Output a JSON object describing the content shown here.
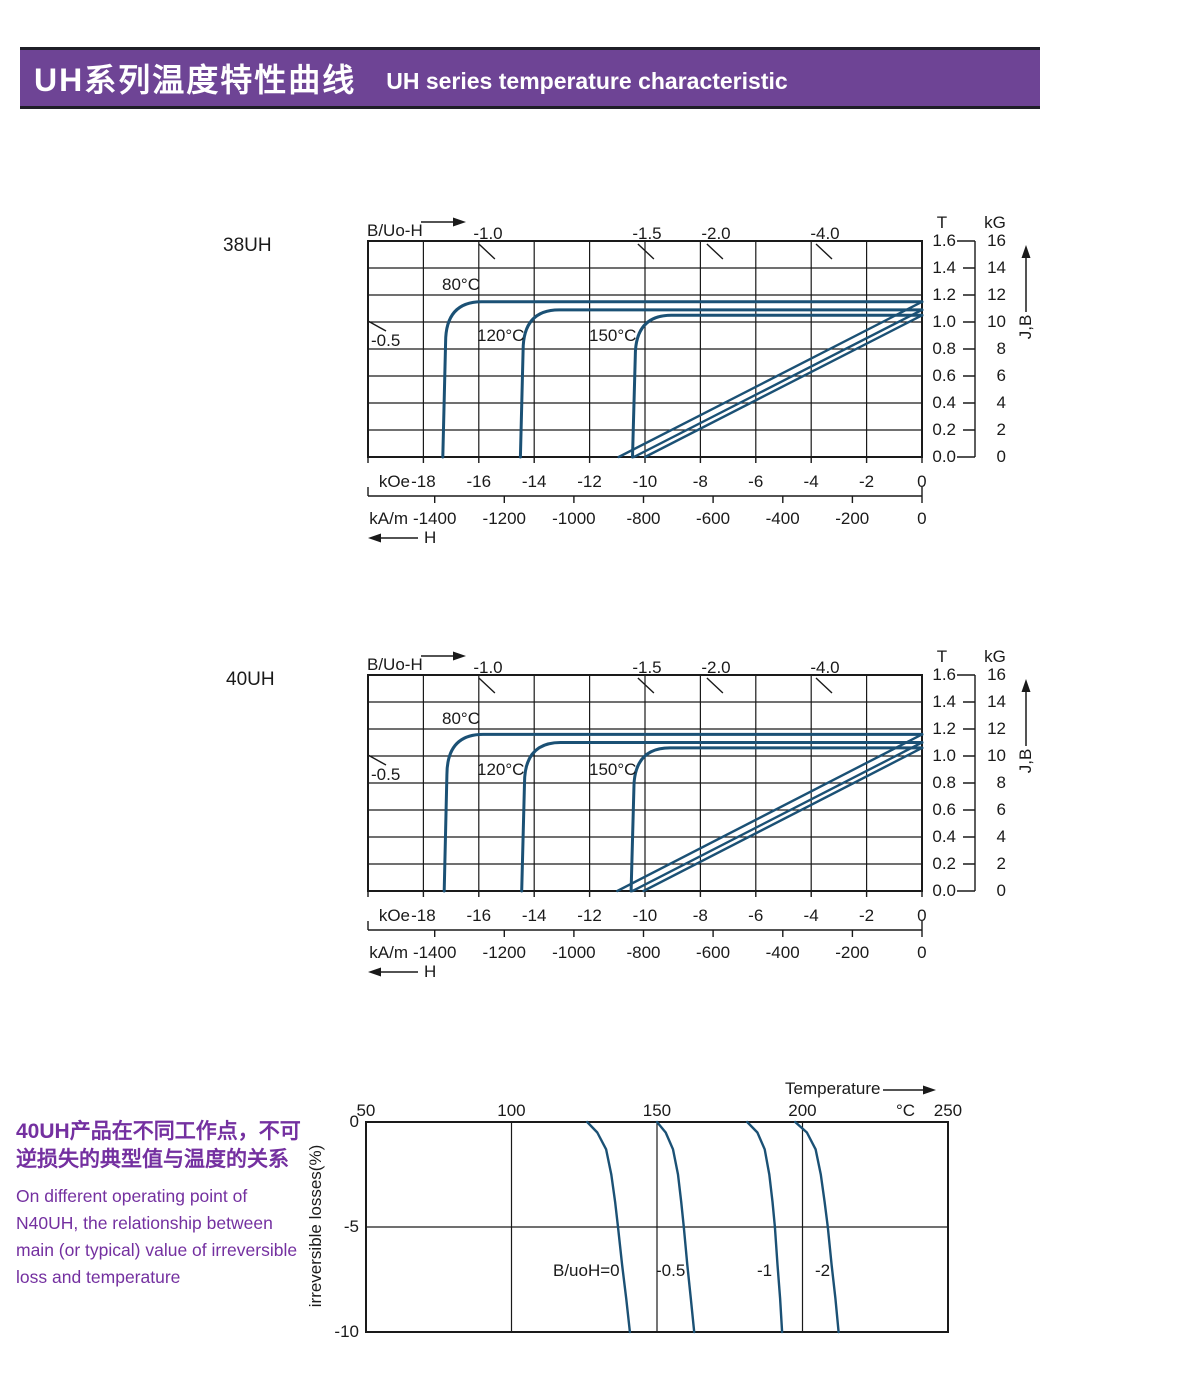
{
  "colors": {
    "accent_purple": "#6e4495",
    "text_purple": "#7430a0",
    "curve_blue": "#1b5175",
    "line_black": "#1a1a1a"
  },
  "header": {
    "title_cn": "UH系列温度特性曲线",
    "title_en": "UH series temperature characteristic"
  },
  "side_note": {
    "cn_lines": [
      "40UH产品在不同工作点，不可",
      "逆损失的典型值与温度的关系"
    ],
    "en_lines": [
      "On different operating point of",
      "N40UH,  the relationship between",
      "main (or typical) value of irreversible",
      "loss and temperature"
    ]
  },
  "chart_data": [
    {
      "name": "38UH demagnetization curves",
      "type": "line",
      "title": "38UH",
      "top_axis_label": "B/Uo-H",
      "load_lines": [
        "-1.0",
        "-1.5",
        "-2.0",
        "-4.0"
      ],
      "load_lines_pos_koe": [
        -15.67,
        -9.93,
        -7.44,
        -3.5
      ],
      "load_line_left": "-0.5",
      "xlim_koe": [
        -20,
        0
      ],
      "ylim_tesla": [
        0,
        1.6
      ],
      "x_axis_koe": {
        "unit": "kOe",
        "ticks": [
          "-18",
          "-16",
          "-14",
          "-12",
          "-10",
          "-8",
          "-6",
          "-4",
          "-2",
          "0"
        ]
      },
      "x_axis_kam": {
        "unit": "kA/m",
        "ticks": [
          "-1400",
          "-1200",
          "-1000",
          "-800",
          "-600",
          "-400",
          "-200",
          "0"
        ]
      },
      "x_arrow_label": "H",
      "right_axis": {
        "tesla_header": "T",
        "gauss_header": "kG",
        "axis_label": "J,B",
        "tesla_ticks": [
          "1.6",
          "1.4",
          "1.2",
          "1.0",
          "0.8",
          "0.6",
          "0.4",
          "0.2",
          "0.0"
        ],
        "gauss_ticks": [
          "16",
          "14",
          "12",
          "10",
          "8",
          "6",
          "4",
          "2",
          "0"
        ]
      },
      "series": [
        {
          "label": "80°C",
          "curve": "J",
          "flat_tesla": 1.15,
          "knee_koe": -17.2
        },
        {
          "label": "120°C",
          "curve": "J",
          "flat_tesla": 1.09,
          "knee_koe": -14.4
        },
        {
          "label": "150°C",
          "curve": "J",
          "flat_tesla": 1.05,
          "knee_koe": -10.35
        },
        {
          "curve": "B",
          "br_tesla": 1.15,
          "h0_koe": -10.95
        },
        {
          "curve": "B",
          "br_tesla": 1.09,
          "h0_koe": -10.4
        },
        {
          "curve": "B",
          "br_tesla": 1.05,
          "h0_koe": -10.0
        }
      ]
    },
    {
      "name": "40UH demagnetization curves",
      "type": "line",
      "title": "40UH",
      "top_axis_label": "B/Uo-H",
      "load_lines": [
        "-1.0",
        "-1.5",
        "-2.0",
        "-4.0"
      ],
      "load_lines_pos_koe": [
        -15.67,
        -9.93,
        -7.44,
        -3.5
      ],
      "load_line_left": "-0.5",
      "xlim_koe": [
        -20,
        0
      ],
      "ylim_tesla": [
        0,
        1.6
      ],
      "x_axis_koe": {
        "unit": "kOe",
        "ticks": [
          "-18",
          "-16",
          "-14",
          "-12",
          "-10",
          "-8",
          "-6",
          "-4",
          "-2",
          "0"
        ]
      },
      "x_axis_kam": {
        "unit": "kA/m",
        "ticks": [
          "-1400",
          "-1200",
          "-1000",
          "-800",
          "-600",
          "-400",
          "-200",
          "0"
        ]
      },
      "x_arrow_label": "H",
      "right_axis": {
        "tesla_header": "T",
        "gauss_header": "kG",
        "axis_label": "J,B",
        "tesla_ticks": [
          "1.6",
          "1.4",
          "1.2",
          "1.0",
          "0.8",
          "0.6",
          "0.4",
          "0.2",
          "0.0"
        ],
        "gauss_ticks": [
          "16",
          "14",
          "12",
          "10",
          "8",
          "6",
          "4",
          "2",
          "0"
        ]
      },
      "series": [
        {
          "label": "80°C",
          "curve": "J",
          "flat_tesla": 1.16,
          "knee_koe": -17.15
        },
        {
          "label": "120°C",
          "curve": "J",
          "flat_tesla": 1.1,
          "knee_koe": -14.35
        },
        {
          "label": "150°C",
          "curve": "J",
          "flat_tesla": 1.06,
          "knee_koe": -10.4
        },
        {
          "curve": "B",
          "br_tesla": 1.16,
          "h0_koe": -11.0
        },
        {
          "curve": "B",
          "br_tesla": 1.1,
          "h0_koe": -10.45
        },
        {
          "curve": "B",
          "br_tesla": 1.06,
          "h0_koe": -10.05
        }
      ]
    },
    {
      "name": "irreversible loss vs temperature (40UH)",
      "type": "line",
      "x_axis": {
        "label": "Temperature",
        "unit": "°C",
        "ticks": [
          "50",
          "100",
          "150",
          "200",
          "250"
        ]
      },
      "y_axis": {
        "label": "irreversible  losses(%)",
        "ticks": [
          "0",
          "-5",
          "-10"
        ]
      },
      "xlim_c": [
        50,
        250
      ],
      "ylim_pct": [
        -10,
        0
      ],
      "series": [
        {
          "label": "B/uoH=0",
          "points": [
            [
              126,
              0
            ],
            [
              129.5,
              -0.5
            ],
            [
              132.5,
              -1.3
            ],
            [
              134.3,
              -2.5
            ],
            [
              135.6,
              -3.8
            ],
            [
              136.6,
              -5
            ],
            [
              138,
              -6.8
            ],
            [
              139.4,
              -8.4
            ],
            [
              140.7,
              -10
            ]
          ]
        },
        {
          "label": "-0.5",
          "points": [
            [
              150,
              0
            ],
            [
              153,
              -0.5
            ],
            [
              155.5,
              -1.3
            ],
            [
              157.2,
              -2.5
            ],
            [
              158.3,
              -3.8
            ],
            [
              159.2,
              -5
            ],
            [
              160.4,
              -6.8
            ],
            [
              161.6,
              -8.4
            ],
            [
              162.8,
              -10
            ]
          ]
        },
        {
          "label": "-1",
          "points": [
            [
              181,
              0
            ],
            [
              184.5,
              -0.5
            ],
            [
              187,
              -1.3
            ],
            [
              188.6,
              -2.5
            ],
            [
              189.7,
              -3.8
            ],
            [
              190.5,
              -5
            ],
            [
              191.4,
              -6.8
            ],
            [
              192.3,
              -8.4
            ],
            [
              193,
              -10
            ]
          ]
        },
        {
          "label": "-2",
          "points": [
            [
              197.5,
              0
            ],
            [
              201.5,
              -0.5
            ],
            [
              204.5,
              -1.3
            ],
            [
              206.3,
              -2.5
            ],
            [
              207.6,
              -3.8
            ],
            [
              208.7,
              -5
            ],
            [
              210,
              -6.8
            ],
            [
              211.3,
              -8.4
            ],
            [
              212.4,
              -10
            ]
          ]
        }
      ]
    }
  ]
}
